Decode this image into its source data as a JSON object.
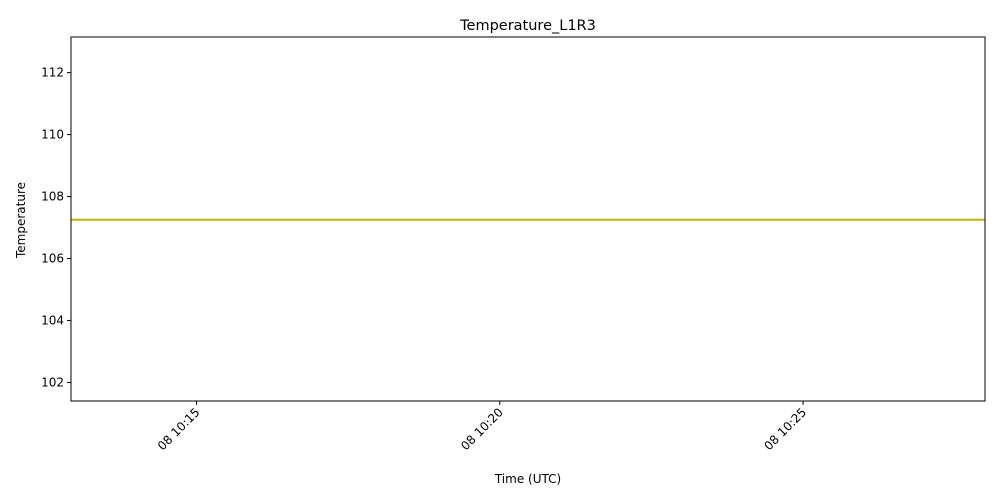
{
  "chart_data": {
    "type": "line",
    "title": "Temperature_L1R3",
    "xlabel": "Time (UTC)",
    "ylabel": "Temperature",
    "x_ticks": [
      "08 10:15",
      "08 10:20",
      "08 10:25"
    ],
    "x_tick_minutes": [
      15,
      20,
      25
    ],
    "xlim_minutes": [
      12.93,
      28.0
    ],
    "y_ticks": [
      102,
      104,
      106,
      108,
      110,
      112
    ],
    "ylim": [
      101.4,
      113.15
    ],
    "grid": false,
    "series": [
      {
        "color": "#bcbd22",
        "x_minutes": [
          12.93,
          28.0
        ],
        "values": [
          107.25,
          107.25
        ]
      }
    ]
  }
}
